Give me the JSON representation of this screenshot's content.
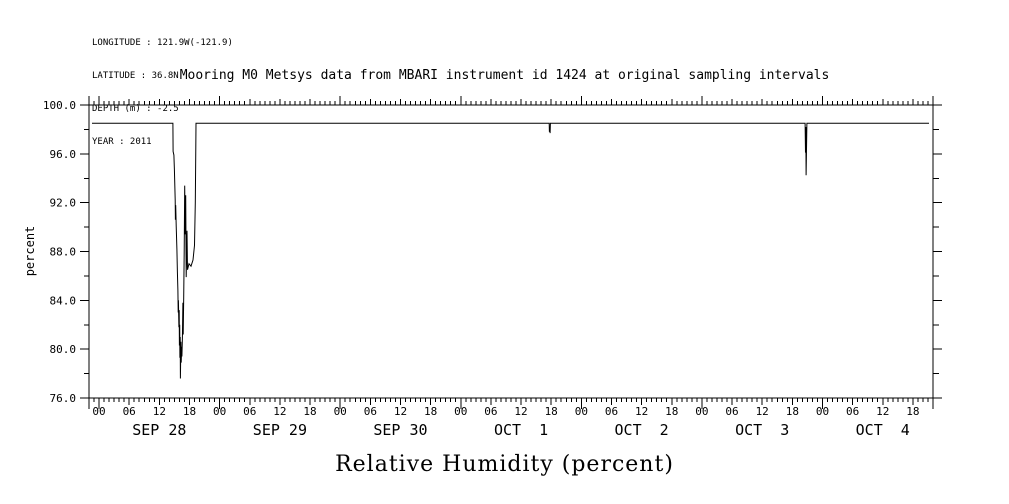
{
  "meta": {
    "lines": [
      "LONGITUDE : 121.9W(-121.9)",
      "LATITUDE : 36.8N",
      "DEPTH (m) : -2.5",
      "YEAR : 2011"
    ]
  },
  "title": "Mooring M0 Metsys data from MBARI instrument id 1424 at original sampling intervals",
  "xlabel": "Relative Humidity (percent)",
  "ylabel": "percent",
  "colors": {
    "line": "#000000",
    "background": "#ffffff",
    "text": "#000000"
  },
  "chart_data": {
    "type": "line",
    "title": "Mooring M0 Metsys data from MBARI instrument id 1424 at original sampling intervals",
    "xlabel": "Relative Humidity (percent)",
    "ylabel": "percent",
    "grid": "off",
    "legend": "none",
    "y_axis": {
      "min": 76.0,
      "max": 100.0,
      "major_step": 4,
      "minor_step": 2,
      "tick_labels": [
        "76.0",
        "80.0",
        "84.0",
        "88.0",
        "92.0",
        "96.0",
        "100.0"
      ]
    },
    "x_axis": {
      "unit": "hours since SEP 28 00:00, year 2011",
      "start_hour": -2,
      "end_hour": 166,
      "minor_step_hours": 1,
      "label_step_hours": 6,
      "last_labeled_hour": 162,
      "hour_label_cycle": [
        "00",
        "06",
        "12",
        "18"
      ],
      "day_labels": [
        {
          "t": 12,
          "label": "SEP 28"
        },
        {
          "t": 36,
          "label": "SEP 29"
        },
        {
          "t": 60,
          "label": "SEP 30"
        },
        {
          "t": 84,
          "label": "OCT  1"
        },
        {
          "t": 108,
          "label": "OCT  2"
        },
        {
          "t": 132,
          "label": "OCT  3"
        },
        {
          "t": 156,
          "label": "OCT  4"
        }
      ]
    },
    "series": [
      {
        "name": "Relative Humidity",
        "baseline_value": 98.5,
        "min_value": 77.6,
        "points": [
          [
            -1.4,
            98.5
          ],
          [
            14.7,
            98.5
          ],
          [
            14.75,
            96.2
          ],
          [
            14.9,
            95.9
          ],
          [
            15.0,
            94.7
          ],
          [
            15.15,
            92.2
          ],
          [
            15.2,
            90.6
          ],
          [
            15.25,
            91.8
          ],
          [
            15.35,
            90.1
          ],
          [
            15.5,
            88.2
          ],
          [
            15.6,
            86.3
          ],
          [
            15.7,
            84.8
          ],
          [
            15.75,
            83.0
          ],
          [
            15.8,
            84.0
          ],
          [
            15.9,
            81.8
          ],
          [
            15.95,
            83.2
          ],
          [
            16.0,
            80.3
          ],
          [
            16.05,
            82.0
          ],
          [
            16.1,
            79.3
          ],
          [
            16.15,
            81.0
          ],
          [
            16.2,
            77.6
          ],
          [
            16.3,
            80.6
          ],
          [
            16.35,
            78.9
          ],
          [
            16.45,
            80.2
          ],
          [
            16.5,
            79.4
          ],
          [
            16.6,
            80.9
          ],
          [
            16.7,
            83.8
          ],
          [
            16.75,
            81.2
          ],
          [
            16.85,
            84.2
          ],
          [
            16.95,
            88.0
          ],
          [
            17.05,
            93.4
          ],
          [
            17.15,
            89.4
          ],
          [
            17.25,
            92.6
          ],
          [
            17.35,
            85.9
          ],
          [
            17.5,
            89.7
          ],
          [
            17.6,
            86.5
          ],
          [
            17.9,
            87.0
          ],
          [
            18.3,
            86.8
          ],
          [
            18.7,
            87.3
          ],
          [
            19.0,
            88.5
          ],
          [
            19.15,
            92.0
          ],
          [
            19.25,
            96.5
          ],
          [
            19.3,
            98.5
          ],
          [
            89.6,
            98.5
          ],
          [
            89.65,
            97.8
          ],
          [
            89.7,
            98.2
          ],
          [
            89.78,
            97.7
          ],
          [
            89.85,
            98.5
          ],
          [
            140.55,
            98.5
          ],
          [
            140.62,
            96.1
          ],
          [
            140.68,
            98.2
          ],
          [
            140.75,
            94.25
          ],
          [
            140.9,
            98.5
          ],
          [
            165.2,
            98.5
          ]
        ]
      }
    ]
  }
}
